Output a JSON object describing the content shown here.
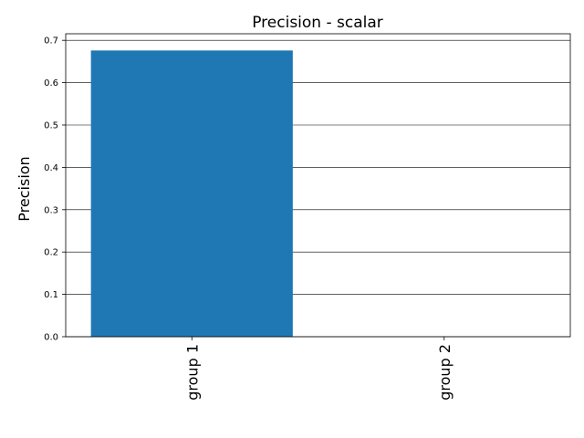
{
  "chart_data": {
    "type": "bar",
    "title": "Precision - scalar",
    "xlabel": "",
    "ylabel": "Precision",
    "categories": [
      "group 1",
      "group 2"
    ],
    "values": [
      0.676,
      0
    ],
    "ylim": [
      0,
      0.7
    ],
    "yticks": [
      "0.0",
      "0.1",
      "0.2",
      "0.3",
      "0.4",
      "0.5",
      "0.6",
      "0.7"
    ],
    "grid": "horizontal",
    "bar_color": "#1f77b4"
  }
}
